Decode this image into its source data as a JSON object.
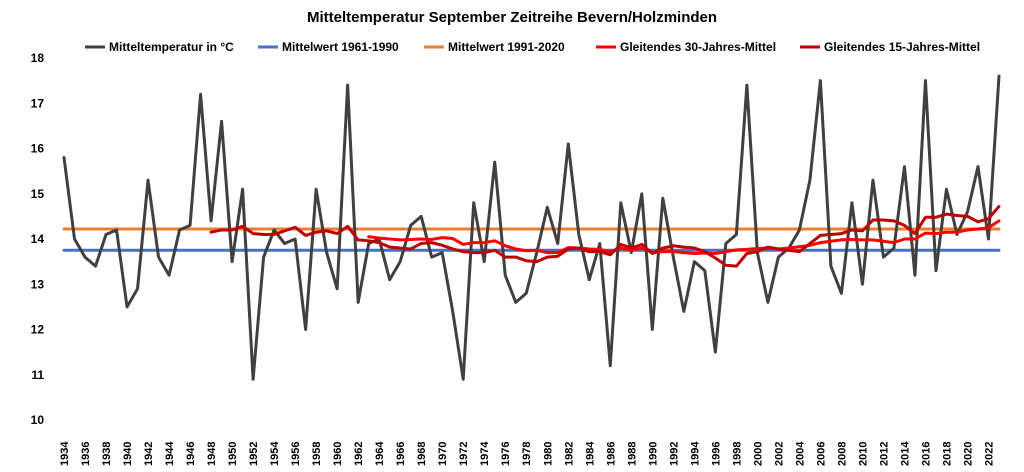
{
  "chart_data": {
    "type": "line",
    "title": "Mitteltemperatur September Zeitreihe Bevern/Holzminden",
    "xlabel": "",
    "ylabel": "",
    "ylim": [
      10,
      18
    ],
    "yticks": [
      10,
      11,
      12,
      13,
      14,
      15,
      16,
      17,
      18
    ],
    "xlim": [
      1934,
      2023
    ],
    "xticks": [
      1934,
      1936,
      1938,
      1940,
      1942,
      1944,
      1946,
      1948,
      1950,
      1952,
      1954,
      1956,
      1958,
      1960,
      1962,
      1964,
      1966,
      1968,
      1970,
      1972,
      1974,
      1976,
      1978,
      1980,
      1982,
      1984,
      1986,
      1988,
      1990,
      1992,
      1994,
      1996,
      1998,
      2000,
      2002,
      2004,
      2006,
      2008,
      2010,
      2012,
      2014,
      2016,
      2018,
      2020,
      2022
    ],
    "grid": false,
    "legend_position": "top",
    "series": [
      {
        "name": "Mitteltemperatur in °C",
        "color": "#404040",
        "x": [
          1934,
          1935,
          1936,
          1937,
          1938,
          1939,
          1940,
          1941,
          1942,
          1943,
          1944,
          1945,
          1946,
          1947,
          1948,
          1949,
          1950,
          1951,
          1952,
          1953,
          1954,
          1955,
          1956,
          1957,
          1958,
          1959,
          1960,
          1961,
          1962,
          1963,
          1964,
          1965,
          1966,
          1967,
          1968,
          1969,
          1970,
          1971,
          1972,
          1973,
          1974,
          1975,
          1976,
          1977,
          1978,
          1979,
          1980,
          1981,
          1982,
          1983,
          1984,
          1985,
          1986,
          1987,
          1988,
          1989,
          1990,
          1991,
          1992,
          1993,
          1994,
          1995,
          1996,
          1997,
          1998,
          1999,
          2000,
          2001,
          2002,
          2003,
          2004,
          2005,
          2006,
          2007,
          2008,
          2009,
          2010,
          2011,
          2012,
          2013,
          2014,
          2015,
          2016,
          2017,
          2018,
          2019,
          2020,
          2021,
          2022,
          2023
        ],
        "values": [
          15.8,
          14.0,
          13.6,
          13.4,
          14.1,
          14.2,
          12.5,
          12.9,
          15.3,
          13.6,
          13.2,
          14.2,
          14.3,
          17.2,
          14.4,
          16.6,
          13.5,
          15.1,
          10.9,
          13.6,
          14.2,
          13.9,
          14.0,
          12.0,
          15.1,
          13.7,
          12.9,
          17.4,
          12.6,
          13.9,
          14.0,
          13.1,
          13.5,
          14.3,
          14.5,
          13.6,
          13.7,
          12.4,
          10.9,
          14.8,
          13.5,
          15.7,
          13.2,
          12.6,
          12.8,
          13.7,
          14.7,
          13.9,
          16.1,
          14.1,
          13.1,
          13.9,
          11.2,
          14.8,
          13.7,
          15.0,
          12.0,
          14.9,
          13.6,
          12.4,
          13.5,
          13.3,
          11.5,
          13.9,
          14.1,
          17.4,
          13.7,
          12.6,
          13.6,
          13.8,
          14.2,
          15.3,
          17.5,
          13.4,
          12.8,
          14.8,
          13.0,
          15.3,
          13.6,
          13.8,
          15.6,
          13.2,
          17.5,
          13.3,
          15.1,
          14.1,
          14.6,
          15.6,
          14.0,
          17.6
        ]
      },
      {
        "name": "Mittelwert 1961-1990",
        "color": "#4472c4",
        "x": [
          1934,
          2023
        ],
        "values": [
          13.75,
          13.75
        ]
      },
      {
        "name": "Mittelwert 1991-2020",
        "color": "#ed7d31",
        "x": [
          1934,
          2023
        ],
        "values": [
          14.22,
          14.22
        ]
      },
      {
        "name": "Gleitendes 30-Jahres-Mittel",
        "color": "#ff0000",
        "x": [
          1963,
          1964,
          1965,
          1966,
          1967,
          1968,
          1969,
          1970,
          1971,
          1972,
          1973,
          1974,
          1975,
          1976,
          1977,
          1978,
          1979,
          1980,
          1981,
          1982,
          1983,
          1984,
          1985,
          1986,
          1987,
          1988,
          1989,
          1990,
          1991,
          1992,
          1993,
          1994,
          1995,
          1996,
          1997,
          1998,
          1999,
          2000,
          2001,
          2002,
          2003,
          2004,
          2005,
          2006,
          2007,
          2008,
          2009,
          2010,
          2011,
          2012,
          2013,
          2014,
          2015,
          2016,
          2017,
          2018,
          2019,
          2020,
          2021,
          2022,
          2023
        ],
        "values": [
          14.05,
          14.02,
          14.0,
          13.98,
          13.99,
          14.0,
          13.99,
          14.03,
          14.01,
          13.88,
          13.92,
          13.92,
          13.96,
          13.85,
          13.78,
          13.74,
          13.75,
          13.7,
          13.7,
          13.81,
          13.8,
          13.78,
          13.77,
          13.72,
          13.8,
          13.75,
          13.8,
          13.7,
          13.72,
          13.72,
          13.7,
          13.68,
          13.69,
          13.68,
          13.72,
          13.76,
          13.77,
          13.79,
          13.8,
          13.78,
          13.8,
          13.83,
          13.86,
          13.92,
          13.95,
          13.98,
          13.99,
          13.98,
          13.98,
          13.95,
          13.92,
          14.0,
          14.0,
          14.13,
          14.12,
          14.15,
          14.15,
          14.2,
          14.22,
          14.25,
          14.4
        ]
      },
      {
        "name": "Gleitendes 15-Jahres-Mittel",
        "color": "#c00000",
        "x": [
          1948,
          1949,
          1950,
          1951,
          1952,
          1953,
          1954,
          1955,
          1956,
          1957,
          1958,
          1959,
          1960,
          1961,
          1962,
          1963,
          1964,
          1965,
          1966,
          1967,
          1968,
          1969,
          1970,
          1971,
          1972,
          1973,
          1974,
          1975,
          1976,
          1977,
          1978,
          1979,
          1980,
          1981,
          1982,
          1983,
          1984,
          1985,
          1986,
          1987,
          1988,
          1989,
          1990,
          1991,
          1992,
          1993,
          1994,
          1995,
          1996,
          1997,
          1998,
          1999,
          2000,
          2001,
          2002,
          2003,
          2004,
          2005,
          2006,
          2007,
          2008,
          2009,
          2010,
          2011,
          2012,
          2013,
          2014,
          2015,
          2016,
          2017,
          2018,
          2019,
          2020,
          2021,
          2022,
          2023
        ],
        "values": [
          14.15,
          14.2,
          14.2,
          14.28,
          14.12,
          14.1,
          14.1,
          14.18,
          14.26,
          14.08,
          14.15,
          14.18,
          14.12,
          14.28,
          13.98,
          13.96,
          13.92,
          13.82,
          13.8,
          13.78,
          13.9,
          13.92,
          13.86,
          13.78,
          13.72,
          13.7,
          13.7,
          13.75,
          13.6,
          13.6,
          13.52,
          13.5,
          13.6,
          13.62,
          13.78,
          13.8,
          13.72,
          13.72,
          13.65,
          13.88,
          13.8,
          13.88,
          13.68,
          13.8,
          13.85,
          13.82,
          13.8,
          13.72,
          13.58,
          13.42,
          13.4,
          13.68,
          13.72,
          13.82,
          13.78,
          13.75,
          13.72,
          13.9,
          14.08,
          14.1,
          14.12,
          14.2,
          14.18,
          14.42,
          14.42,
          14.4,
          14.3,
          14.12,
          14.48,
          14.48,
          14.55,
          14.52,
          14.5,
          14.38,
          14.45,
          14.72
        ]
      }
    ]
  }
}
